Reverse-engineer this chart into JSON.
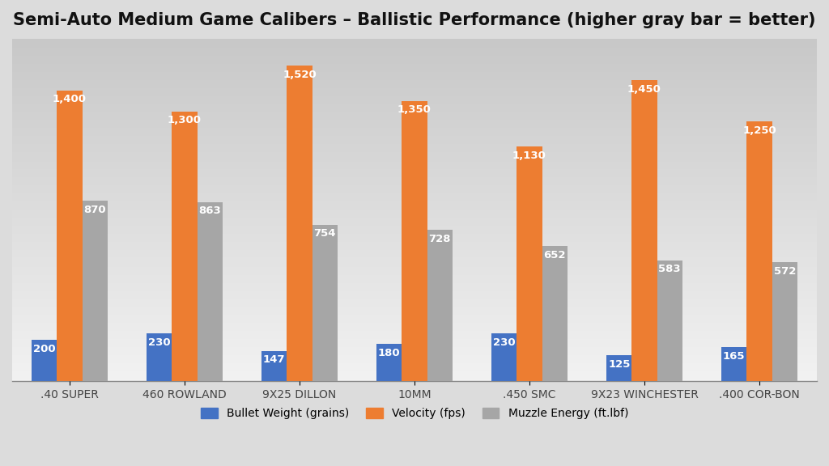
{
  "title": "Semi-Auto Medium Game Calibers – Ballistic Performance (higher gray bar = better)",
  "categories": [
    ".40 SUPER",
    "460 ROWLAND",
    "9X25 DILLON",
    "10MM",
    ".450 SMC",
    "9X23 WINCHESTER",
    ".400 COR-BON"
  ],
  "bullet_weight": [
    200,
    230,
    147,
    180,
    230,
    125,
    165
  ],
  "velocity": [
    1400,
    1300,
    1520,
    1350,
    1130,
    1450,
    1250
  ],
  "muzzle_energy": [
    870,
    863,
    754,
    728,
    652,
    583,
    572
  ],
  "color_bullet": "#4472C4",
  "color_velocity": "#ED7D31",
  "color_energy": "#A6A6A6",
  "ylim": [
    0,
    1650
  ],
  "bar_width": 0.22,
  "legend_labels": [
    "Bullet Weight (grains)",
    "Velocity (fps)",
    "Muzzle Energy (ft.lbf)"
  ],
  "title_fontsize": 15,
  "label_fontsize": 10,
  "tick_fontsize": 10,
  "value_fontsize": 9.5,
  "grid_color": "#CCCCCC",
  "bg_color_top": "#CCCCCC",
  "bg_color_bottom": "#F0F0F0"
}
